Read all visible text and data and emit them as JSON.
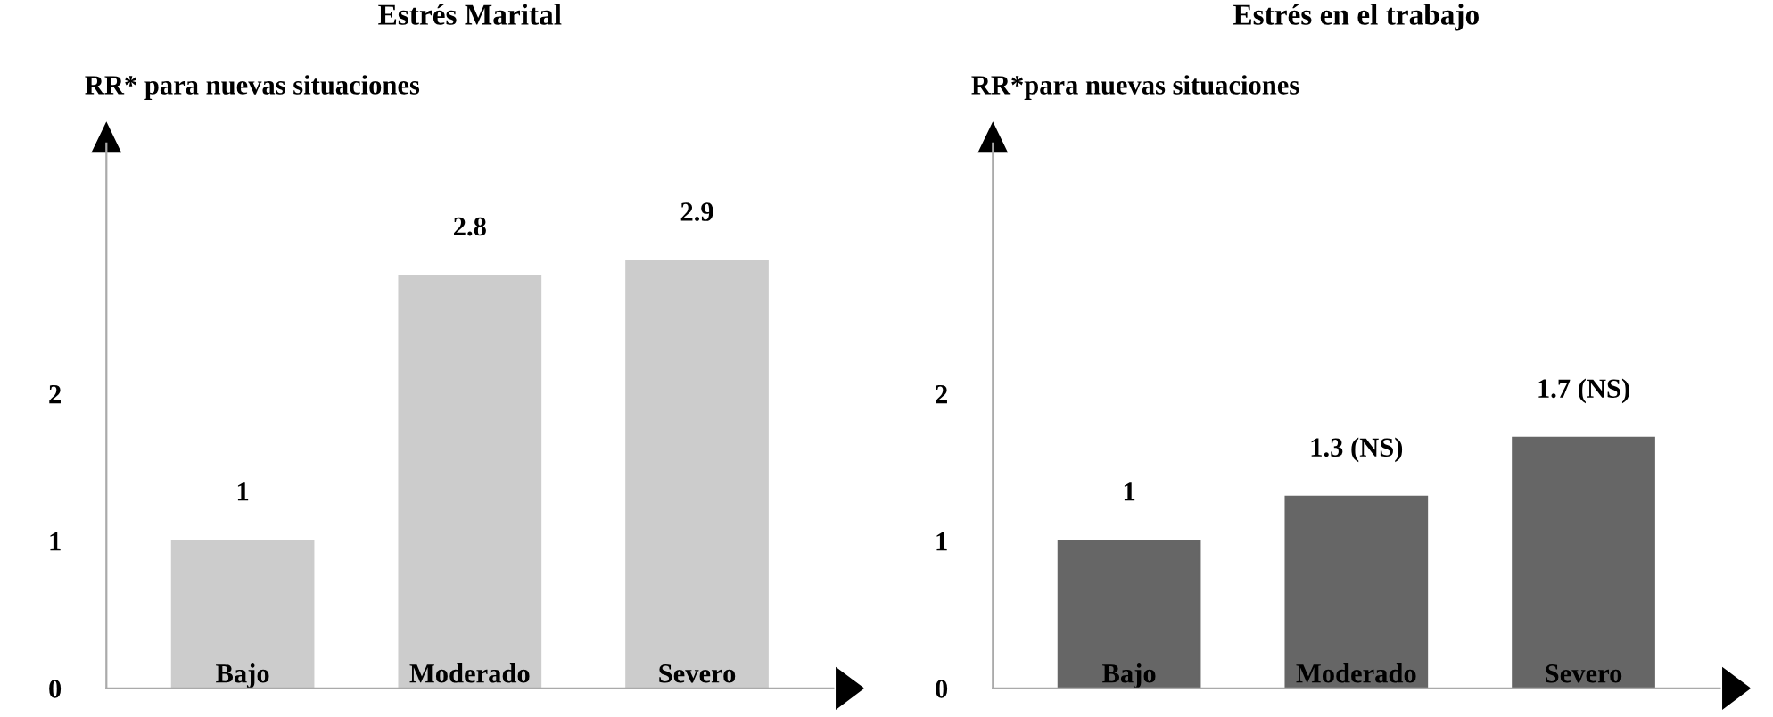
{
  "chart_data": [
    {
      "type": "bar",
      "title": "Estrés Marital",
      "ylabel": "RR* para nuevas situaciones",
      "categories": [
        "Bajo",
        "Moderado",
        "Severo"
      ],
      "values": [
        1,
        2.8,
        2.9
      ],
      "color": "#cccccc",
      "value_labels": [
        "1",
        "2.8",
        "2.9"
      ],
      "ylim": [
        0,
        3.7
      ],
      "yticks": [
        0,
        1,
        2
      ],
      "grid": false
    },
    {
      "type": "bar",
      "title": "Estrés en el trabajo",
      "ylabel": "RR*para nuevas situaciones",
      "categories": [
        "Bajo",
        "Moderado",
        "Severo"
      ],
      "values": [
        1,
        1.3,
        1.7
      ],
      "color": "#666666",
      "value_labels": [
        "1",
        "1.3 (NS)",
        "1.7 (NS)"
      ],
      "ylim": [
        0,
        3.7
      ],
      "yticks": [
        0,
        1,
        2
      ],
      "grid": false
    }
  ]
}
